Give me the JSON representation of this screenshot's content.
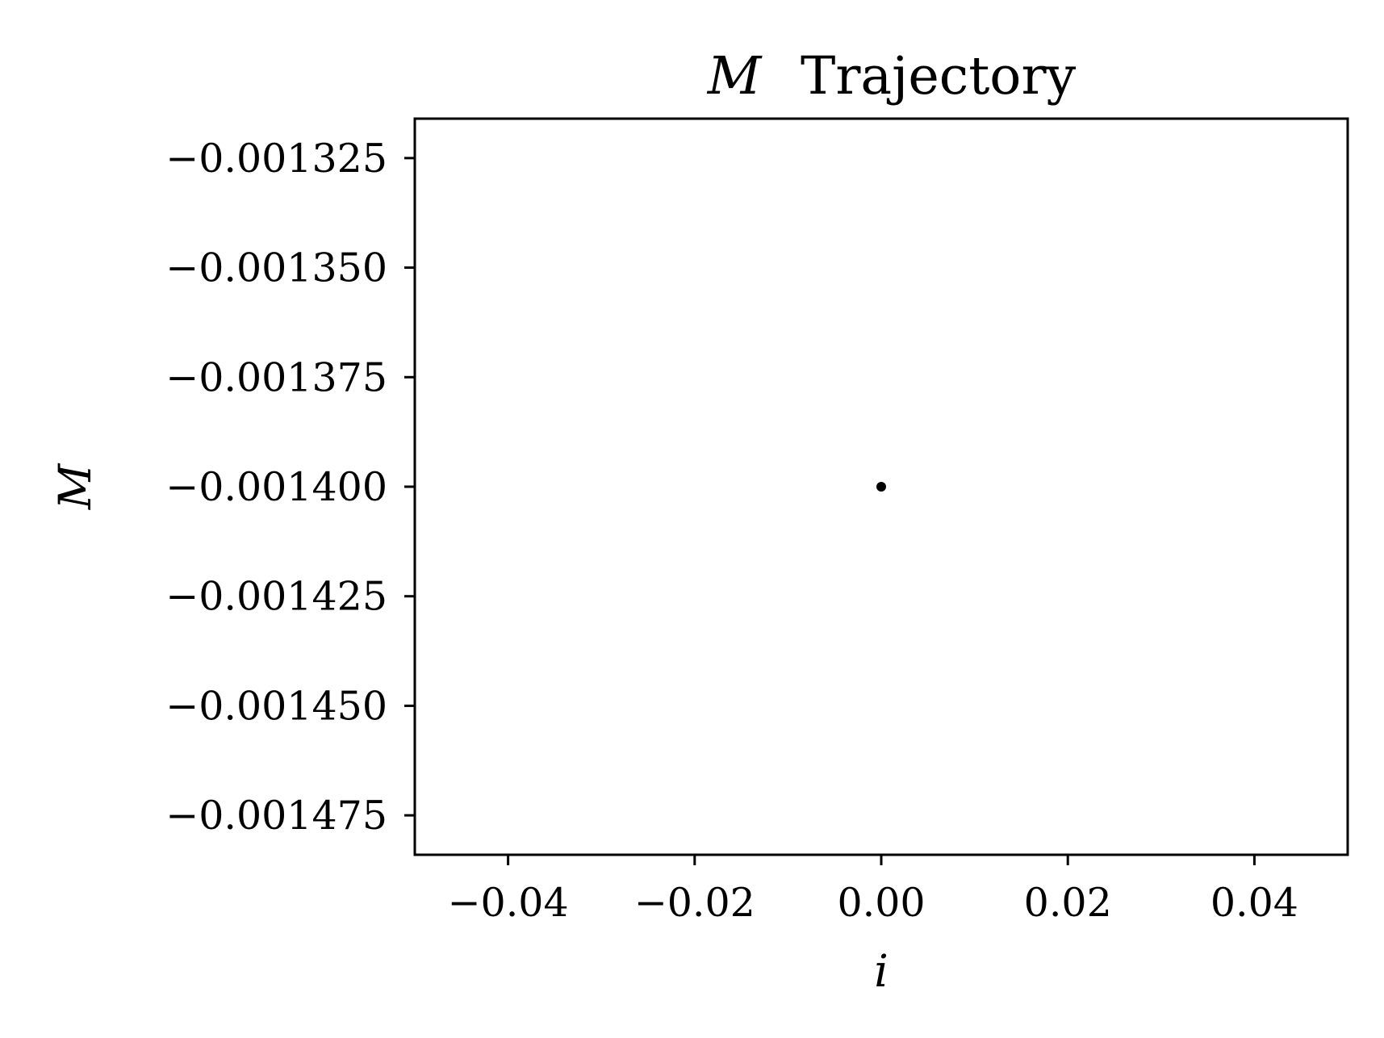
{
  "chart_data": {
    "type": "scatter",
    "title_symbol": "M",
    "title_text": "Trajectory",
    "xlabel": "i",
    "ylabel": "M",
    "xlim": [
      -0.05,
      0.05
    ],
    "ylim": [
      -0.001484,
      -0.001316
    ],
    "xticks": [
      {
        "value": -0.04,
        "label": "−0.04"
      },
      {
        "value": -0.02,
        "label": "−0.02"
      },
      {
        "value": 0.0,
        "label": "0.00"
      },
      {
        "value": 0.02,
        "label": "0.02"
      },
      {
        "value": 0.04,
        "label": "0.04"
      }
    ],
    "yticks": [
      {
        "value": -0.001325,
        "label": "−0.001325"
      },
      {
        "value": -0.00135,
        "label": "−0.001350"
      },
      {
        "value": -0.001375,
        "label": "−0.001375"
      },
      {
        "value": -0.0014,
        "label": "−0.001400"
      },
      {
        "value": -0.001425,
        "label": "−0.001425"
      },
      {
        "value": -0.00145,
        "label": "−0.001450"
      },
      {
        "value": -0.001475,
        "label": "−0.001475"
      }
    ],
    "points": [
      {
        "x": 0.0,
        "y": -0.0014
      }
    ],
    "grid": false,
    "colors": {
      "marker": "#000000",
      "axes": "#000000",
      "background": "#ffffff"
    }
  }
}
